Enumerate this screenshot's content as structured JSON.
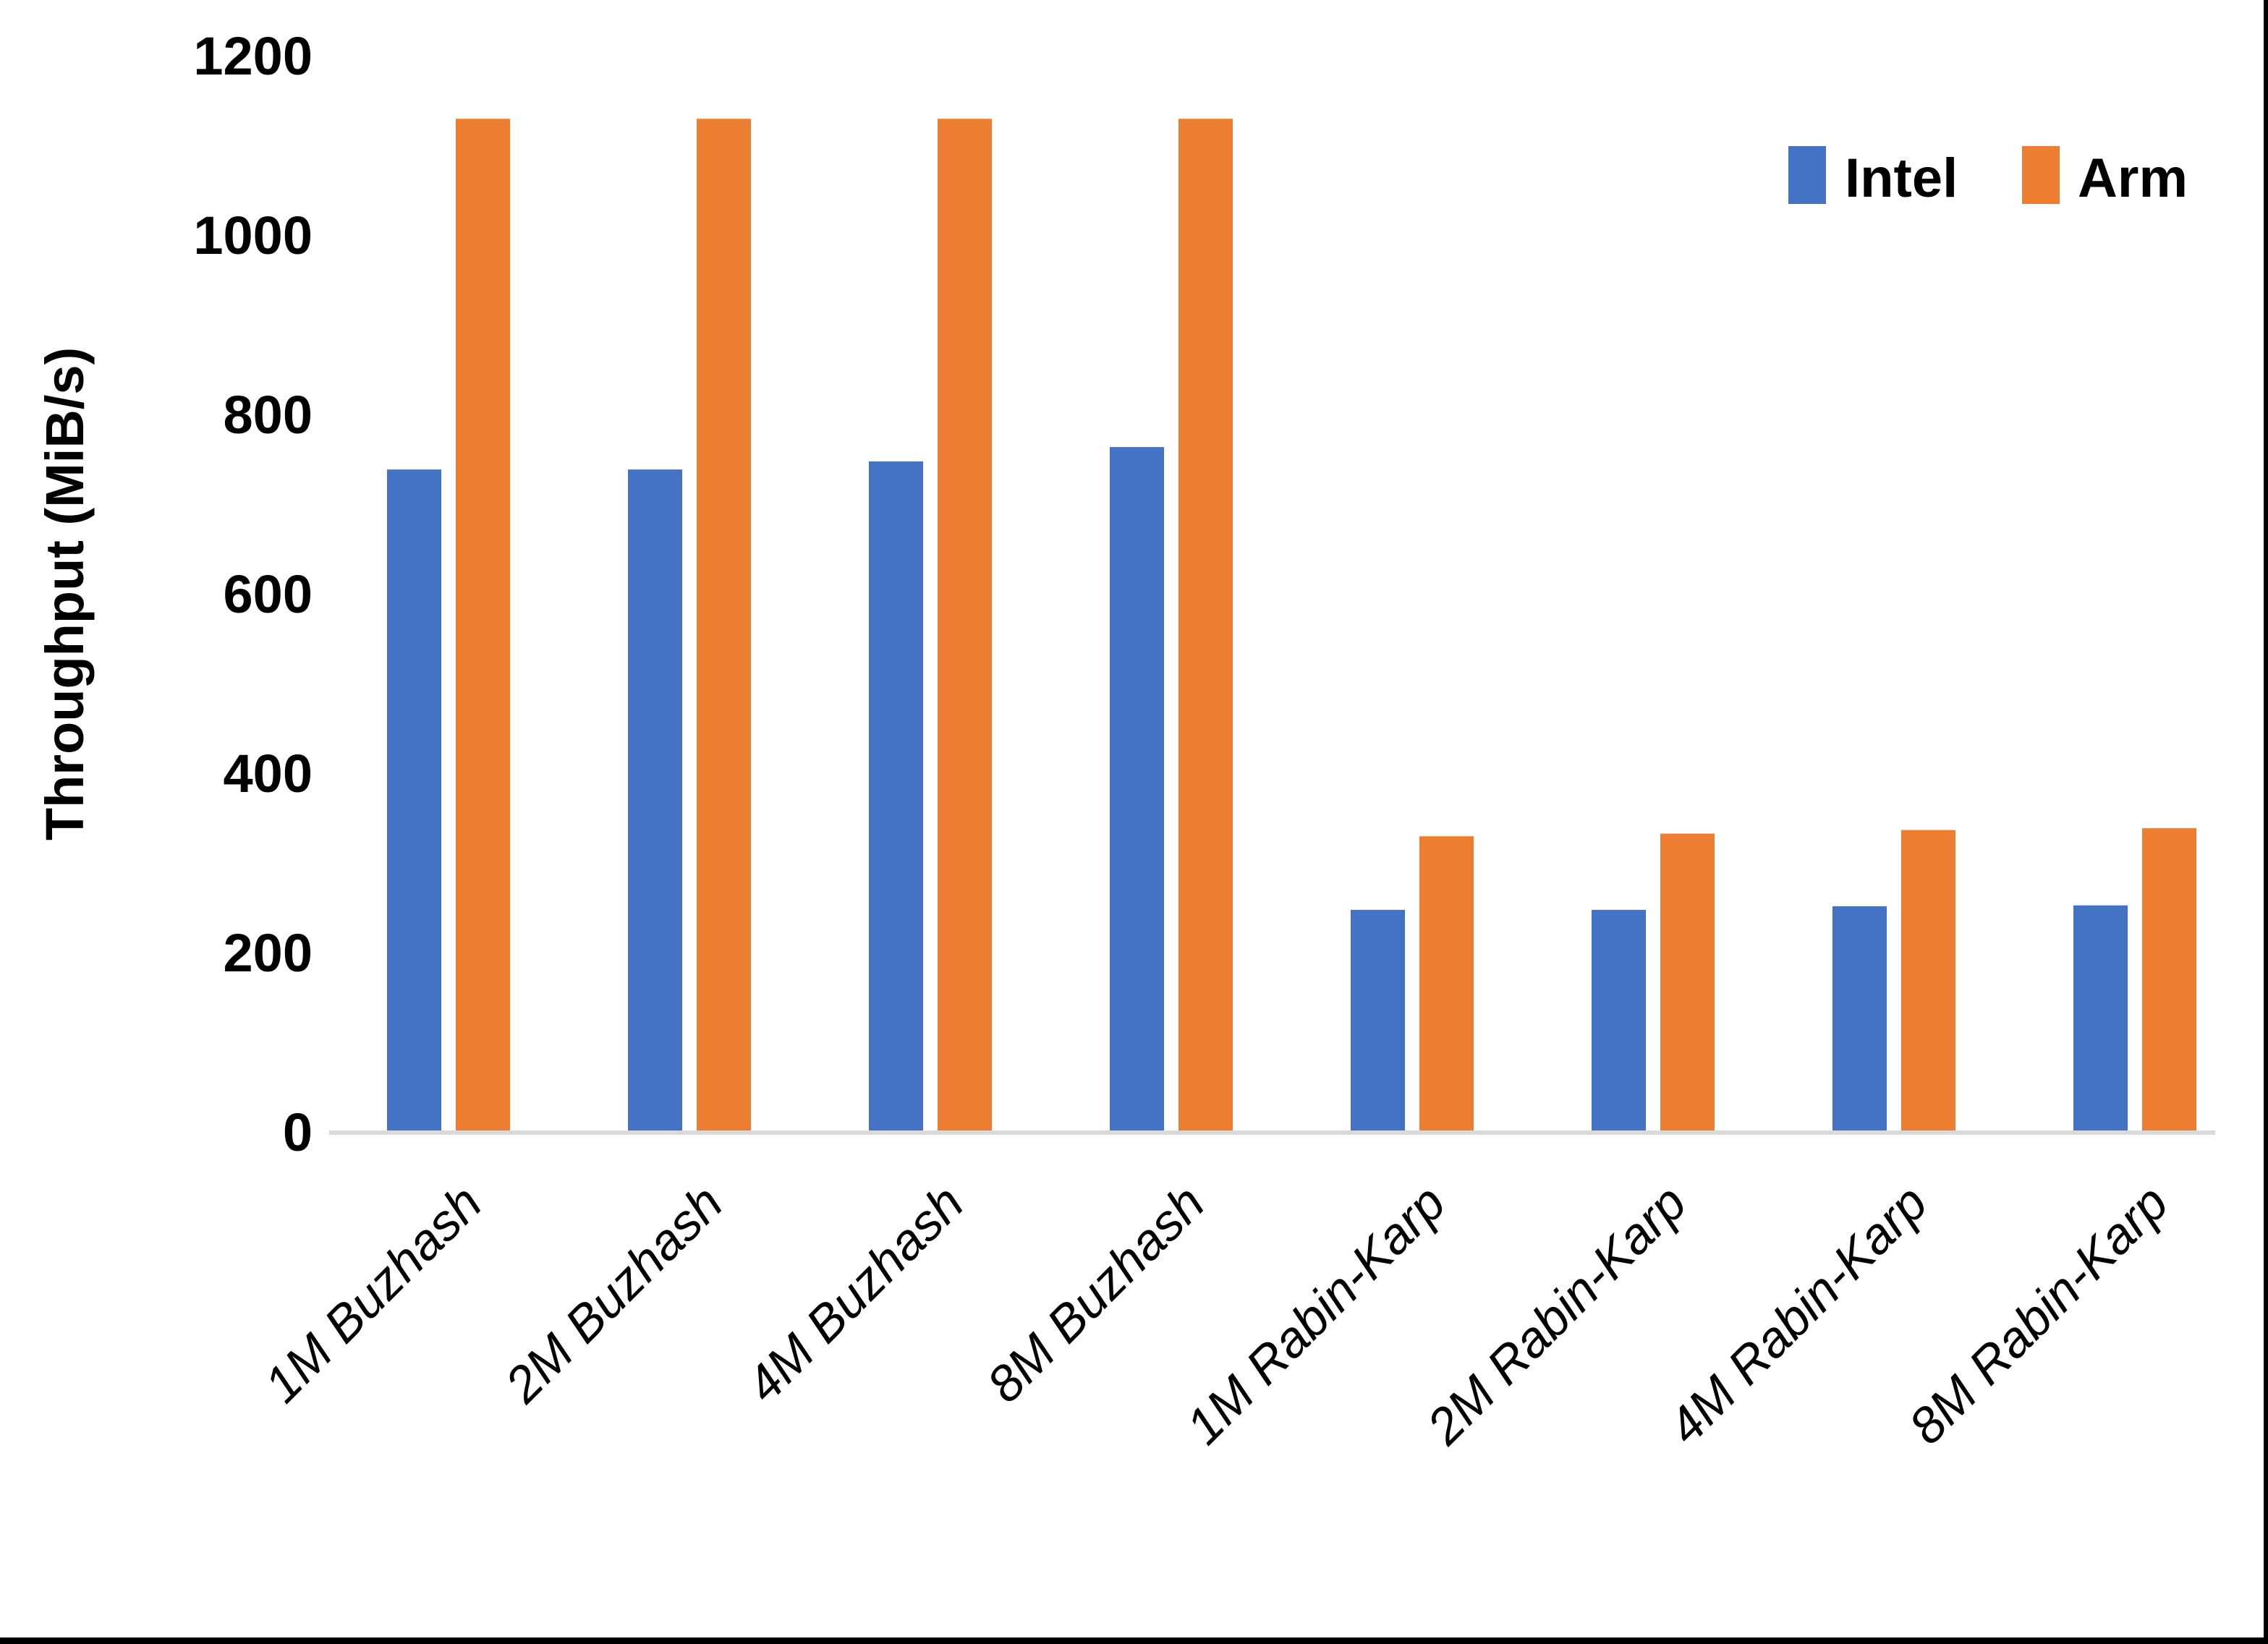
{
  "chart_data": {
    "type": "bar",
    "title": "",
    "ylabel": "Throughput (MiB/s)",
    "xlabel": "",
    "categories": [
      "1M Buzhash",
      "2M Buzhash",
      "4M Buzhash",
      "8M Buzhash",
      "1M Rabin-Karp",
      "2M Rabin-Karp",
      "4M Rabin-Karp",
      "8M Rabin-Karp"
    ],
    "series": [
      {
        "name": "Intel",
        "color": "#4472C4",
        "values": [
          737,
          737,
          746,
          762,
          246,
          246,
          250,
          251
        ]
      },
      {
        "name": "Arm",
        "color": "#ED7D31",
        "values": [
          1128,
          1128,
          1128,
          1128,
          328,
          331,
          335,
          337
        ]
      }
    ],
    "ylim": [
      0,
      1200
    ],
    "yticks": [
      0,
      200,
      400,
      600,
      800,
      1000,
      1200
    ],
    "grid": false,
    "legend_position": "top-right",
    "x_label_rotation_deg": 45,
    "x_label_style": "italic",
    "axis_line_color": "#D9D9D9",
    "text_color": "#000000",
    "background": "#FFFFFF"
  },
  "page": {
    "bottom_border_color": "#000000",
    "right_border_color": "#000000"
  }
}
